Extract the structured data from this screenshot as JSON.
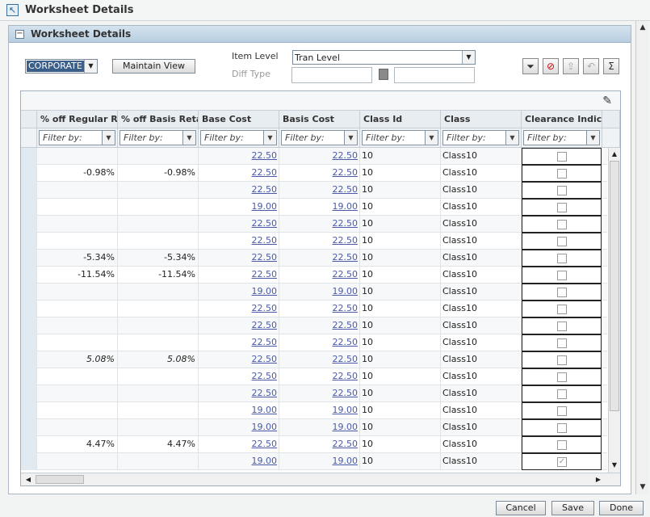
{
  "window": {
    "title": "Worksheet Details"
  },
  "panel": {
    "title": "Worksheet Details"
  },
  "controls": {
    "location_value": "CORPORATE",
    "maintain_view_label": "Maintain View",
    "item_level_label": "Item Level",
    "item_level_value": "Tran Level",
    "diff_type_label": "Diff Type"
  },
  "toolbar": {
    "icons": [
      "filter-icon",
      "clear-filter-icon",
      "export-icon",
      "undo-icon",
      "sum-icon"
    ]
  },
  "table": {
    "columns": [
      "% off Regular Retail",
      "% off Basis Retail",
      "Base Cost",
      "Basis Cost",
      "Class Id",
      "Class",
      "Clearance Indicator"
    ],
    "filter_placeholder": "Filter by:",
    "rows": [
      {
        "off_regular": "",
        "off_basis": "",
        "base_cost": "22.50",
        "basis_cost": "22.50",
        "class_id": "10",
        "class": "Class10",
        "clearance": false,
        "italic": false
      },
      {
        "off_regular": "-0.98%",
        "off_basis": "-0.98%",
        "base_cost": "22.50",
        "basis_cost": "22.50",
        "class_id": "10",
        "class": "Class10",
        "clearance": false,
        "italic": false
      },
      {
        "off_regular": "",
        "off_basis": "",
        "base_cost": "22.50",
        "basis_cost": "22.50",
        "class_id": "10",
        "class": "Class10",
        "clearance": false,
        "italic": false
      },
      {
        "off_regular": "",
        "off_basis": "",
        "base_cost": "19.00",
        "basis_cost": "19.00",
        "class_id": "10",
        "class": "Class10",
        "clearance": false,
        "italic": false
      },
      {
        "off_regular": "",
        "off_basis": "",
        "base_cost": "22.50",
        "basis_cost": "22.50",
        "class_id": "10",
        "class": "Class10",
        "clearance": false,
        "italic": false
      },
      {
        "off_regular": "",
        "off_basis": "",
        "base_cost": "22.50",
        "basis_cost": "22.50",
        "class_id": "10",
        "class": "Class10",
        "clearance": false,
        "italic": false
      },
      {
        "off_regular": "-5.34%",
        "off_basis": "-5.34%",
        "base_cost": "22.50",
        "basis_cost": "22.50",
        "class_id": "10",
        "class": "Class10",
        "clearance": false,
        "italic": false
      },
      {
        "off_regular": "-11.54%",
        "off_basis": "-11.54%",
        "base_cost": "22.50",
        "basis_cost": "22.50",
        "class_id": "10",
        "class": "Class10",
        "clearance": false,
        "italic": false
      },
      {
        "off_regular": "",
        "off_basis": "",
        "base_cost": "19.00",
        "basis_cost": "19.00",
        "class_id": "10",
        "class": "Class10",
        "clearance": false,
        "italic": false
      },
      {
        "off_regular": "",
        "off_basis": "",
        "base_cost": "22.50",
        "basis_cost": "22.50",
        "class_id": "10",
        "class": "Class10",
        "clearance": false,
        "italic": false
      },
      {
        "off_regular": "",
        "off_basis": "",
        "base_cost": "22.50",
        "basis_cost": "22.50",
        "class_id": "10",
        "class": "Class10",
        "clearance": false,
        "italic": false
      },
      {
        "off_regular": "",
        "off_basis": "",
        "base_cost": "22.50",
        "basis_cost": "22.50",
        "class_id": "10",
        "class": "Class10",
        "clearance": false,
        "italic": false
      },
      {
        "off_regular": "5.08%",
        "off_basis": "5.08%",
        "base_cost": "22.50",
        "basis_cost": "22.50",
        "class_id": "10",
        "class": "Class10",
        "clearance": false,
        "italic": true
      },
      {
        "off_regular": "",
        "off_basis": "",
        "base_cost": "22.50",
        "basis_cost": "22.50",
        "class_id": "10",
        "class": "Class10",
        "clearance": false,
        "italic": false
      },
      {
        "off_regular": "",
        "off_basis": "",
        "base_cost": "22.50",
        "basis_cost": "22.50",
        "class_id": "10",
        "class": "Class10",
        "clearance": false,
        "italic": false
      },
      {
        "off_regular": "",
        "off_basis": "",
        "base_cost": "19.00",
        "basis_cost": "19.00",
        "class_id": "10",
        "class": "Class10",
        "clearance": false,
        "italic": false
      },
      {
        "off_regular": "",
        "off_basis": "",
        "base_cost": "19.00",
        "basis_cost": "19.00",
        "class_id": "10",
        "class": "Class10",
        "clearance": false,
        "italic": false
      },
      {
        "off_regular": "4.47%",
        "off_basis": "4.47%",
        "base_cost": "22.50",
        "basis_cost": "22.50",
        "class_id": "10",
        "class": "Class10",
        "clearance": false,
        "italic": false
      },
      {
        "off_regular": "",
        "off_basis": "",
        "base_cost": "19.00",
        "basis_cost": "19.00",
        "class_id": "10",
        "class": "Class10",
        "clearance": true,
        "italic": false
      }
    ]
  },
  "footer": {
    "cancel_label": "Cancel",
    "save_label": "Save",
    "done_label": "Done"
  }
}
